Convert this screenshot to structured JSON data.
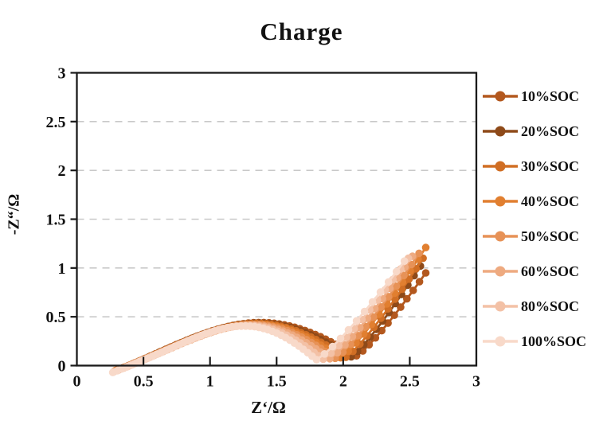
{
  "chart_data": {
    "type": "scatter",
    "title": "Charge",
    "xlabel": "Z‘/Ω",
    "ylabel": "-Z“/Ω",
    "xlim": [
      0,
      3
    ],
    "ylim": [
      0,
      3
    ],
    "x_tick_labels": [
      "0",
      "0.5",
      "1",
      "1.5",
      "2",
      "2.5",
      "3"
    ],
    "y_tick_labels": [
      "0",
      "0.5",
      "1",
      "1.5",
      "2",
      "2.5",
      "3"
    ],
    "grid": "horizontal-dashed",
    "gridline_color": "#c9c9c9",
    "frame_color": "#1a1a1a",
    "legend_position": "right-outside",
    "description": "Nyquist impedance plot: each series is a depressed semicircle arc from its high-frequency intercept to a valley, followed by a rising diffusion tail. Key feature points (ohms) read from the figure.",
    "series": [
      {
        "name": "10%SOC",
        "color": "#b3581e",
        "start": [
          0.32,
          0.0
        ],
        "start_dip": 0.035,
        "arc_peak": [
          1.34,
          0.44
        ],
        "valley": [
          2.1,
          0.1
        ],
        "tail_end": [
          2.62,
          0.95
        ]
      },
      {
        "name": "20%SOC",
        "color": "#8e4a19",
        "start": [
          0.31,
          0.0
        ],
        "start_dip": 0.04,
        "arc_peak": [
          1.33,
          0.435
        ],
        "valley": [
          2.06,
          0.09
        ],
        "tail_end": [
          2.58,
          1.02
        ]
      },
      {
        "name": "30%SOC",
        "color": "#d06e24",
        "start": [
          0.3,
          0.0
        ],
        "start_dip": 0.045,
        "arc_peak": [
          1.32,
          0.43
        ],
        "valley": [
          2.02,
          0.085
        ],
        "tail_end": [
          2.6,
          1.1
        ]
      },
      {
        "name": "40%SOC",
        "color": "#e17f30",
        "start": [
          0.29,
          0.0
        ],
        "start_dip": 0.05,
        "arc_peak": [
          1.31,
          0.425
        ],
        "valley": [
          1.98,
          0.08
        ],
        "tail_end": [
          2.62,
          1.21
        ]
      },
      {
        "name": "50%SOC",
        "color": "#e79257",
        "start": [
          0.285,
          0.0
        ],
        "start_dip": 0.055,
        "arc_peak": [
          1.3,
          0.42
        ],
        "valley": [
          1.94,
          0.075
        ],
        "tail_end": [
          2.57,
          1.15
        ]
      },
      {
        "name": "60%SOC",
        "color": "#eeaa80",
        "start": [
          0.28,
          0.0
        ],
        "start_dip": 0.06,
        "arc_peak": [
          1.28,
          0.415
        ],
        "valley": [
          1.9,
          0.07
        ],
        "tail_end": [
          2.52,
          1.12
        ]
      },
      {
        "name": "80%SOC",
        "color": "#f3c1a6",
        "start": [
          0.275,
          0.0
        ],
        "start_dip": 0.065,
        "arc_peak": [
          1.26,
          0.41
        ],
        "valley": [
          1.85,
          0.065
        ],
        "tail_end": [
          2.49,
          1.1
        ]
      },
      {
        "name": "100%SOC",
        "color": "#f8d9c9",
        "start": [
          0.27,
          0.0
        ],
        "start_dip": 0.07,
        "arc_peak": [
          1.24,
          0.405
        ],
        "valley": [
          1.8,
          0.06
        ],
        "tail_end": [
          2.46,
          1.07
        ]
      }
    ]
  }
}
